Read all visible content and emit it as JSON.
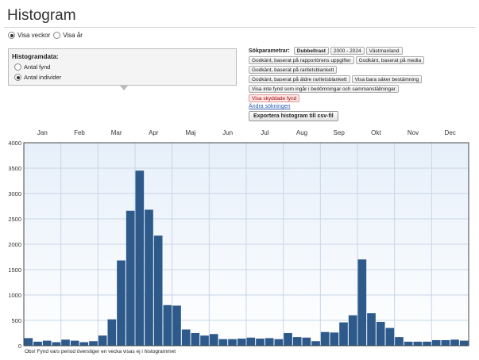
{
  "page": {
    "title": "Histogram"
  },
  "view_toggle": {
    "options": [
      {
        "label": "Visa veckor",
        "checked": true
      },
      {
        "label": "Visa år",
        "checked": false
      }
    ]
  },
  "histogram_data": {
    "title": "Histogramdata:",
    "options": [
      {
        "label": "Antal fynd",
        "checked": false
      },
      {
        "label": "Antal individer",
        "checked": true
      }
    ]
  },
  "search_params": {
    "label": "Sökparametrar:",
    "rows": [
      [
        {
          "text": "Dubbeltrast",
          "style": "bold"
        },
        {
          "text": "2000 - 2024",
          "style": ""
        },
        {
          "text": "Västmanland",
          "style": ""
        }
      ],
      [
        {
          "text": "Godkänt, baserat på rapportörens uppgifter",
          "style": ""
        },
        {
          "text": "Godkänt, baserat på media",
          "style": ""
        }
      ],
      [
        {
          "text": "Godkänt, baserat på raritetsblankett",
          "style": ""
        }
      ],
      [
        {
          "text": "Godkänt, baserat på äldre raritetsblankett",
          "style": ""
        },
        {
          "text": "Visa bara säker bestämning",
          "style": ""
        }
      ],
      [
        {
          "text": "Visa inte fynd som ingår i bedömningar och sammanställningar",
          "style": ""
        }
      ],
      [
        {
          "text": "Visa skyddade fynd",
          "style": "red"
        }
      ]
    ],
    "change_link": "Ändra sökningen"
  },
  "export_button": "Exportera histogram till csv-fil",
  "footnote": "Obs! Fynd vars period överstiger en vecka visas ej i histogrammet",
  "colors": {
    "bar": "#2d5a8a",
    "plot_bg_top": "#e6effa",
    "plot_bg_bottom": "#ffffff",
    "grid": "#c9d6e6"
  },
  "chart_data": {
    "type": "bar",
    "months": [
      "Jan",
      "Feb",
      "Mar",
      "Apr",
      "Maj",
      "Jun",
      "Jul",
      "Aug",
      "Sep",
      "Okt",
      "Nov",
      "Dec"
    ],
    "y_ticks": [
      "0",
      "500",
      "1000",
      "1500",
      "2000",
      "2500",
      "3000",
      "3500",
      "4000"
    ],
    "ylim": [
      0,
      4000
    ],
    "x_unit": "week",
    "values": [
      150,
      80,
      100,
      70,
      120,
      100,
      70,
      90,
      200,
      520,
      1680,
      2660,
      3450,
      2680,
      2170,
      800,
      790,
      320,
      250,
      200,
      230,
      130,
      130,
      140,
      160,
      140,
      150,
      130,
      250,
      170,
      160,
      90,
      270,
      260,
      460,
      600,
      1700,
      640,
      470,
      350,
      170,
      80,
      80,
      80,
      110,
      110,
      120,
      100
    ]
  }
}
